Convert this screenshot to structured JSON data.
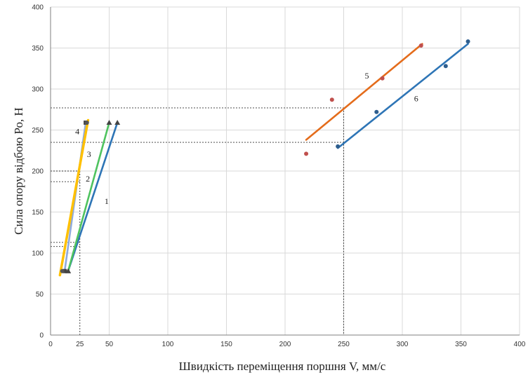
{
  "chart_data": {
    "type": "scatter",
    "title": "",
    "xlabel": "Швидкість переміщення поршня V, мм/с",
    "ylabel": "Сила опору відбою Ро, Н",
    "xlim": [
      0,
      400
    ],
    "ylim": [
      0,
      400
    ],
    "xticks": [
      0,
      25,
      50,
      100,
      150,
      200,
      250,
      300,
      350,
      400
    ],
    "yticks": [
      0,
      50,
      100,
      150,
      200,
      250,
      300,
      350,
      400
    ],
    "grid": true,
    "legend": "none",
    "series": [
      {
        "name": "1",
        "color": "#2e75b6",
        "marker": "triangle",
        "points": [
          [
            15,
            78
          ],
          [
            57,
            259
          ]
        ],
        "fit": [
          [
            15,
            78
          ],
          [
            57,
            259
          ]
        ]
      },
      {
        "name": "2",
        "color": "#4fc35f",
        "marker": "triangle",
        "points": [
          [
            15,
            78
          ],
          [
            50,
            259
          ]
        ],
        "fit": [
          [
            15,
            78
          ],
          [
            50,
            259
          ]
        ]
      },
      {
        "name": "3",
        "color": "#8faadc",
        "marker": "square",
        "points": [
          [
            12,
            78
          ],
          [
            30,
            259
          ]
        ],
        "fit": [
          [
            12,
            78
          ],
          [
            30,
            259
          ]
        ]
      },
      {
        "name": "4",
        "color": "#ffc000",
        "marker": "circle",
        "points": [
          [
            10,
            78
          ],
          [
            31,
            259
          ]
        ],
        "fit": [
          [
            8,
            73
          ],
          [
            32,
            262
          ]
        ]
      },
      {
        "name": "5",
        "color": "#e46c1b",
        "marker": "circle",
        "points": [
          [
            218,
            221
          ],
          [
            240,
            287
          ],
          [
            283,
            313
          ],
          [
            316,
            353
          ]
        ],
        "fit": [
          [
            218,
            238
          ],
          [
            317,
            355
          ]
        ]
      },
      {
        "name": "6",
        "color": "#2e75b6",
        "marker": "circle",
        "points": [
          [
            245,
            230
          ],
          [
            278,
            272
          ],
          [
            337,
            328
          ],
          [
            356,
            358
          ]
        ],
        "fit": [
          [
            245,
            228
          ],
          [
            356,
            355
          ]
        ]
      }
    ],
    "reference_lines": {
      "horizontal": [
        277,
        235,
        200,
        187,
        113,
        108
      ],
      "vertical": [
        25,
        250
      ]
    }
  }
}
